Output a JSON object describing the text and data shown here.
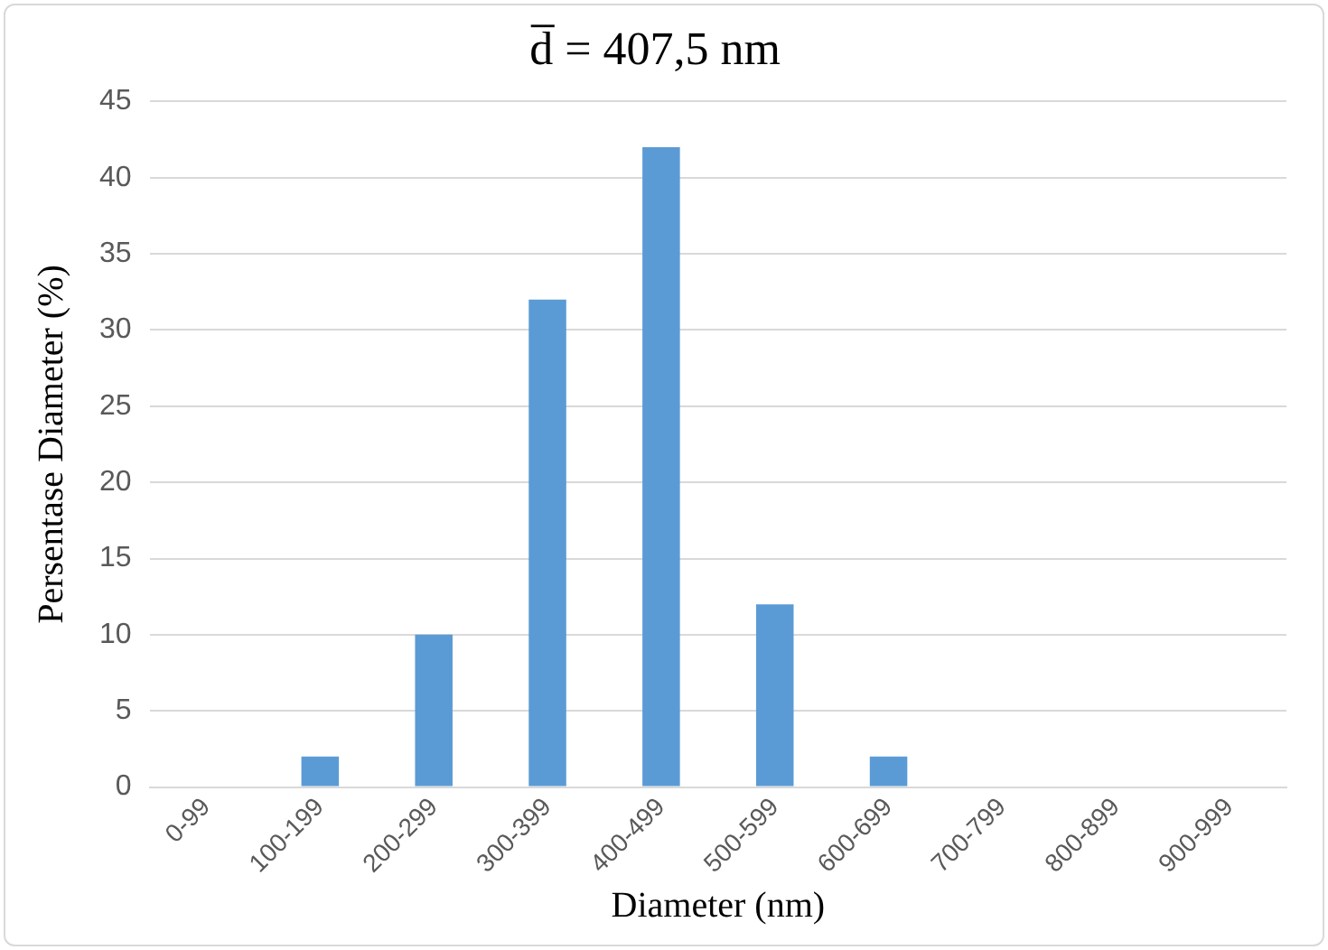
{
  "chart_data": {
    "type": "bar",
    "title": "d̅ = 407,5 nm",
    "xlabel": "Diameter (nm)",
    "ylabel": "Persentase Diameter (%)",
    "categories": [
      "0-99",
      "100-199",
      "200-299",
      "300-399",
      "400-499",
      "500-599",
      "600-699",
      "700-799",
      "800-899",
      "900-999"
    ],
    "values": [
      0,
      2,
      10,
      32,
      42,
      12,
      2,
      0,
      0,
      0
    ],
    "color": "#5b9bd5",
    "ylim": [
      0,
      45
    ],
    "yticks": [
      0,
      5,
      10,
      15,
      20,
      25,
      30,
      35,
      40,
      45
    ],
    "grid": "y",
    "legend": false
  }
}
